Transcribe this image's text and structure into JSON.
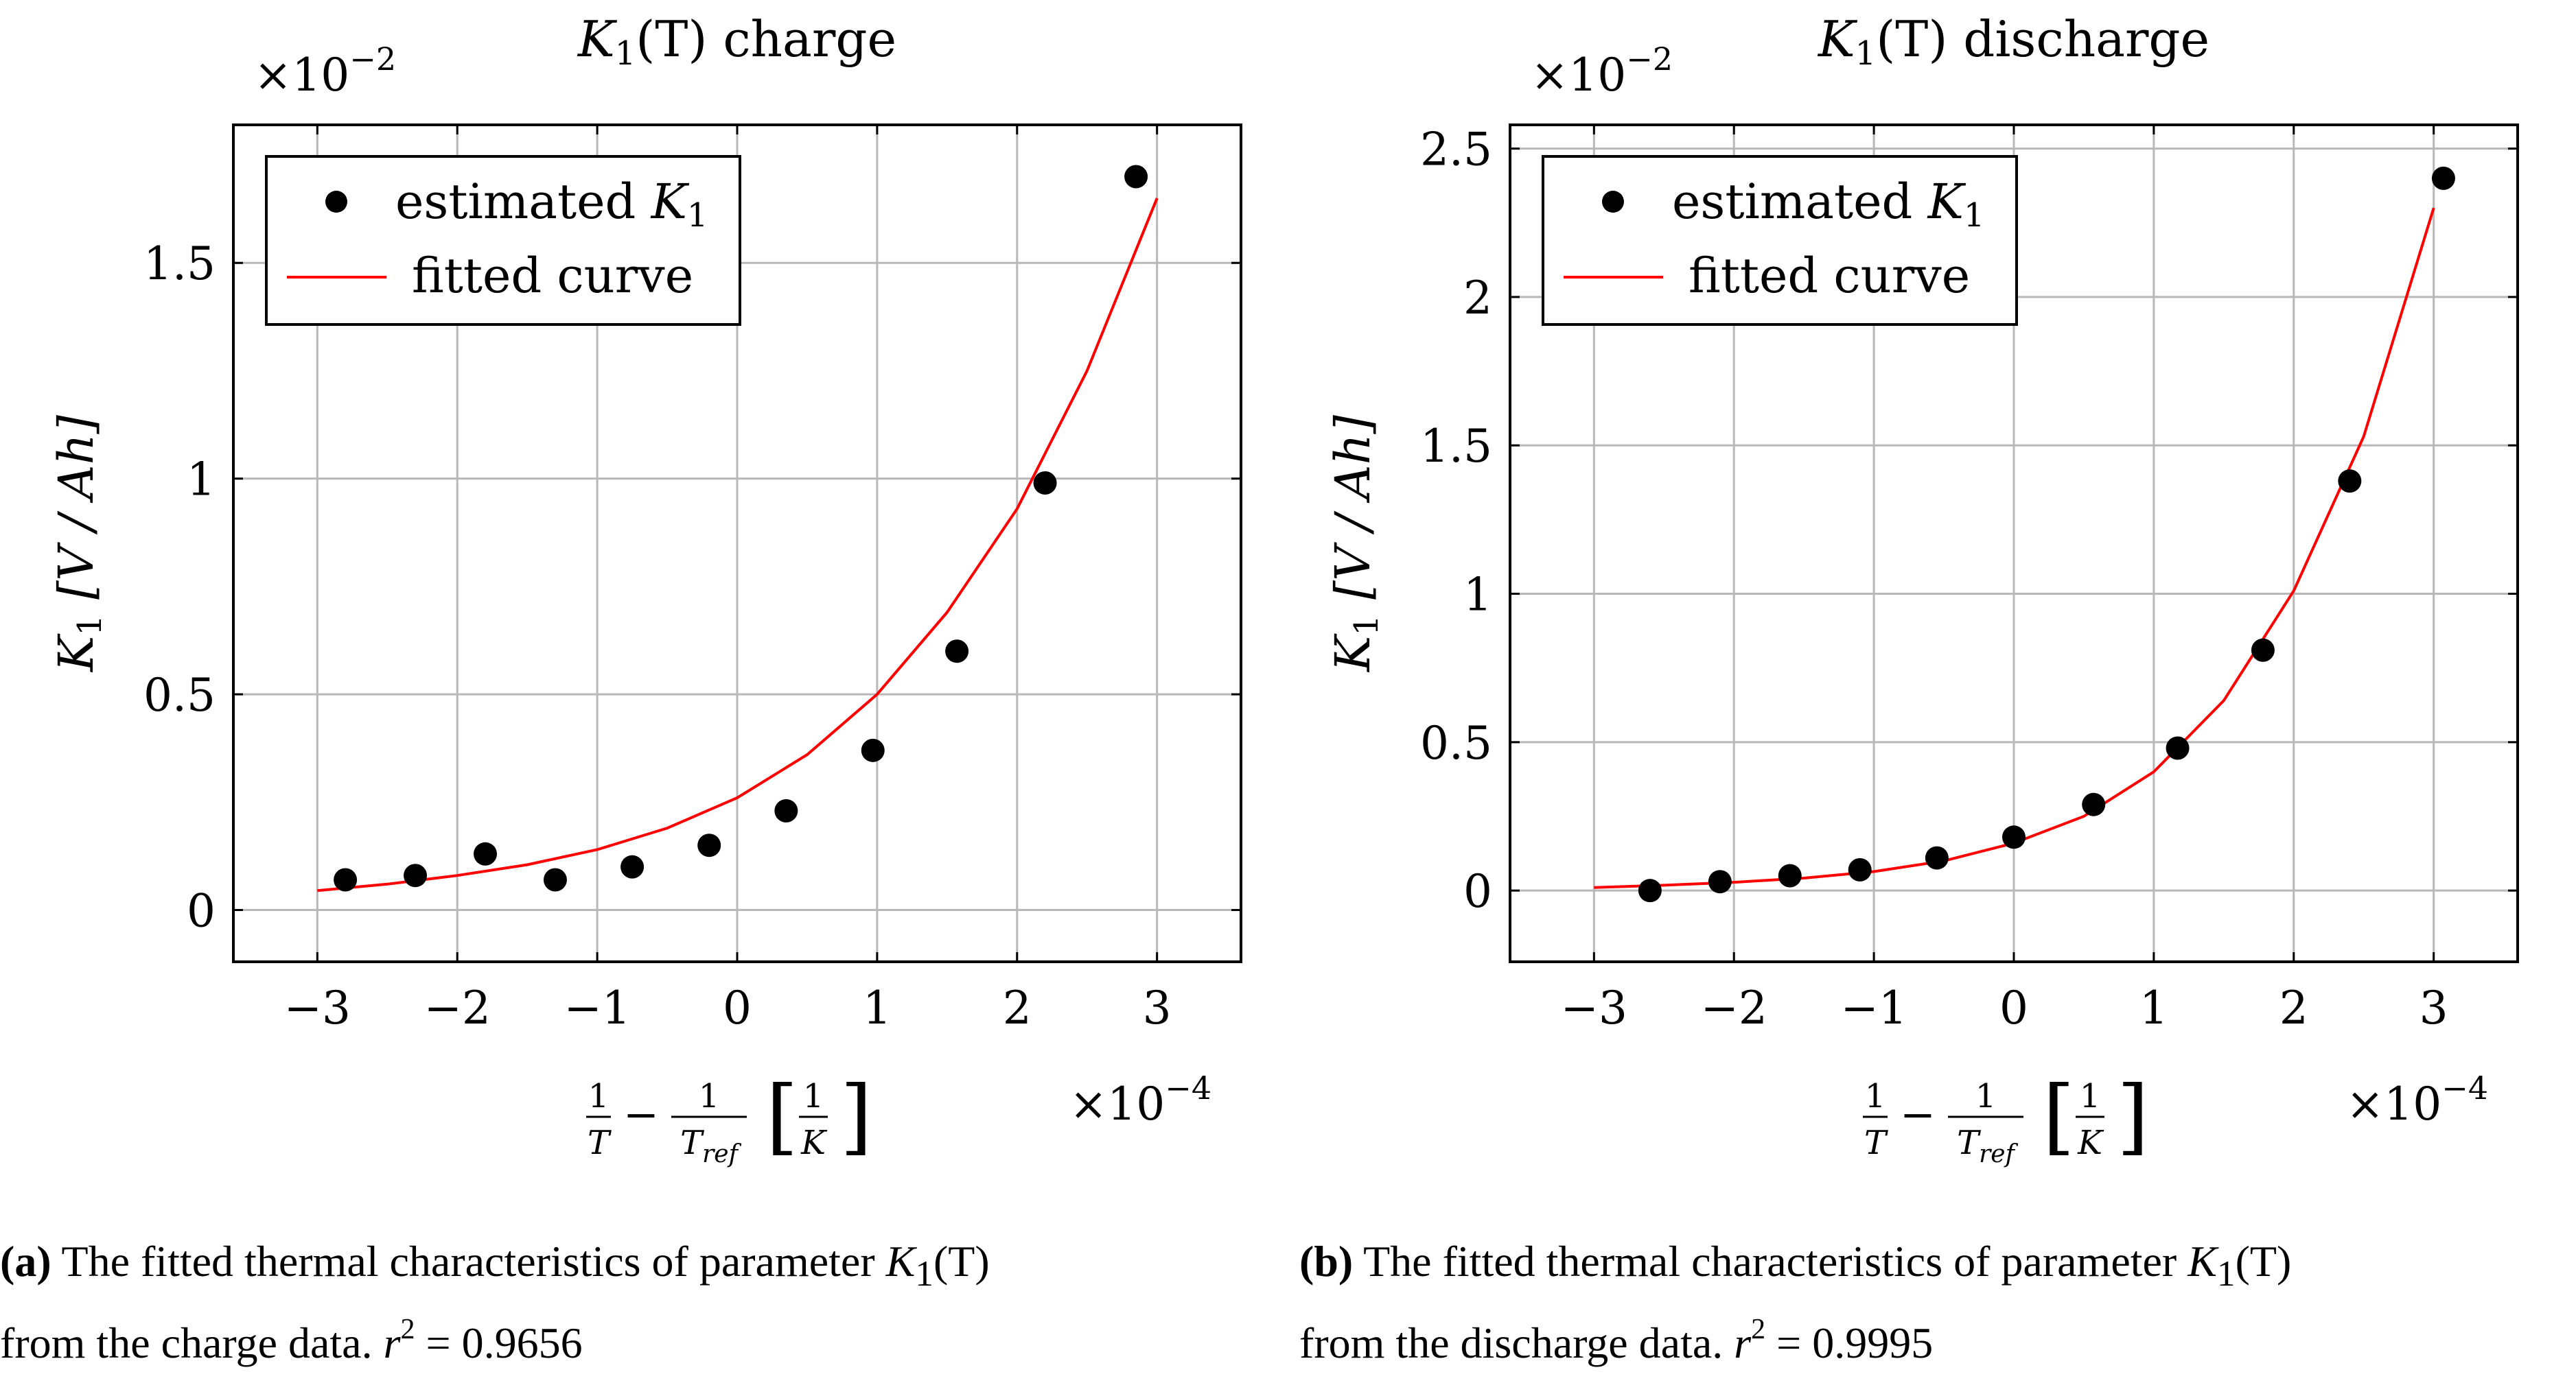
{
  "chart_data": [
    {
      "type": "scatter",
      "title": "K1(T) charge",
      "title_math": "K",
      "title_sub": "1",
      "title_arg": "(T)",
      "title_word": "charge",
      "xlabel": "1/T - 1/T_ref [1/K]",
      "ylabel": "K1 [V / Ah]",
      "ylabel_main": "K",
      "ylabel_sub": "1",
      "ylabel_unit": "[V / Ah]",
      "x_multiplier": "×10",
      "x_multiplier_exp": "−4",
      "y_multiplier": "×10",
      "y_multiplier_exp": "−2",
      "xlim": [
        -3.6,
        3.6
      ],
      "ylim": [
        -0.12,
        1.82
      ],
      "xticks": [
        -3,
        -2,
        -1,
        0,
        1,
        2,
        3
      ],
      "xtick_labels": [
        "−3",
        "−2",
        "−1",
        "0",
        "1",
        "2",
        "3"
      ],
      "yticks": [
        0,
        0.5,
        1,
        1.5
      ],
      "ytick_labels": [
        "0",
        "0.5",
        "1",
        "1.5"
      ],
      "grid": true,
      "legend_position": "top-left",
      "series": [
        {
          "name": "estimated K1",
          "legend_main": "estimated",
          "legend_math": "K",
          "legend_sub": "1",
          "kind": "points",
          "color": "#000000",
          "x": [
            -2.8,
            -2.3,
            -1.8,
            -1.3,
            -0.75,
            -0.2,
            0.35,
            0.97,
            1.57,
            2.2,
            2.85
          ],
          "y": [
            0.07,
            0.08,
            0.13,
            0.07,
            0.1,
            0.15,
            0.23,
            0.37,
            0.6,
            0.99,
            1.7
          ]
        },
        {
          "name": "fitted curve",
          "kind": "line",
          "color": "#ff0000",
          "x": [
            -3.0,
            -2.5,
            -2.0,
            -1.5,
            -1.0,
            -0.5,
            0.0,
            0.5,
            1.0,
            1.5,
            2.0,
            2.5,
            3.0
          ],
          "y": [
            0.045,
            0.06,
            0.08,
            0.105,
            0.14,
            0.19,
            0.26,
            0.36,
            0.5,
            0.69,
            0.93,
            1.25,
            1.65
          ]
        }
      ]
    },
    {
      "type": "scatter",
      "title": "K1(T) discharge",
      "title_math": "K",
      "title_sub": "1",
      "title_arg": "(T)",
      "title_word": "discharge",
      "xlabel": "1/T - 1/T_ref [1/K]",
      "ylabel": "K1 [V / Ah]",
      "ylabel_main": "K",
      "ylabel_sub": "1",
      "ylabel_unit": "[V / Ah]",
      "x_multiplier": "×10",
      "x_multiplier_exp": "−4",
      "y_multiplier": "×10",
      "y_multiplier_exp": "−2",
      "xlim": [
        -3.6,
        3.6
      ],
      "ylim": [
        -0.24,
        2.58
      ],
      "xticks": [
        -3,
        -2,
        -1,
        0,
        1,
        2,
        3
      ],
      "xtick_labels": [
        "−3",
        "−2",
        "−1",
        "0",
        "1",
        "2",
        "3"
      ],
      "yticks": [
        0,
        0.5,
        1,
        1.5,
        2,
        2.5
      ],
      "ytick_labels": [
        "0",
        "0.5",
        "1",
        "1.5",
        "2",
        "2.5"
      ],
      "grid": true,
      "legend_position": "top-left",
      "series": [
        {
          "name": "estimated K1",
          "legend_main": "estimated",
          "legend_math": "K",
          "legend_sub": "1",
          "kind": "points",
          "color": "#000000",
          "x": [
            -2.6,
            -2.1,
            -1.6,
            -1.1,
            -0.55,
            0.0,
            0.57,
            1.17,
            1.78,
            2.4,
            3.07
          ],
          "y": [
            0.0,
            0.03,
            0.05,
            0.07,
            0.11,
            0.18,
            0.29,
            0.48,
            0.81,
            1.38,
            2.4
          ]
        },
        {
          "name": "fitted curve",
          "kind": "line",
          "color": "#ff0000",
          "x": [
            -3.0,
            -2.5,
            -2.0,
            -1.5,
            -1.0,
            -0.5,
            0.0,
            0.5,
            1.0,
            1.5,
            2.0,
            2.5,
            3.0
          ],
          "y": [
            0.01,
            0.018,
            0.028,
            0.042,
            0.064,
            0.1,
            0.16,
            0.25,
            0.4,
            0.64,
            1.01,
            1.53,
            2.3
          ]
        }
      ]
    }
  ],
  "captions": [
    {
      "label": "(a)",
      "text_before": "The fitted thermal characteristics of parameter ",
      "math_k": "K",
      "math_sub": "1",
      "math_arg": "(T)",
      "line2_before": "from the charge data. ",
      "r_symbol": "r",
      "r_exp": "2",
      "r_value": " = 0.9656"
    },
    {
      "label": "(b)",
      "text_before": "The fitted thermal characteristics of parameter ",
      "math_k": "K",
      "math_sub": "1",
      "math_arg": "(T)",
      "line2_before": "from the discharge data. ",
      "r_symbol": "r",
      "r_exp": "2",
      "r_value": " = 0.9995"
    }
  ]
}
